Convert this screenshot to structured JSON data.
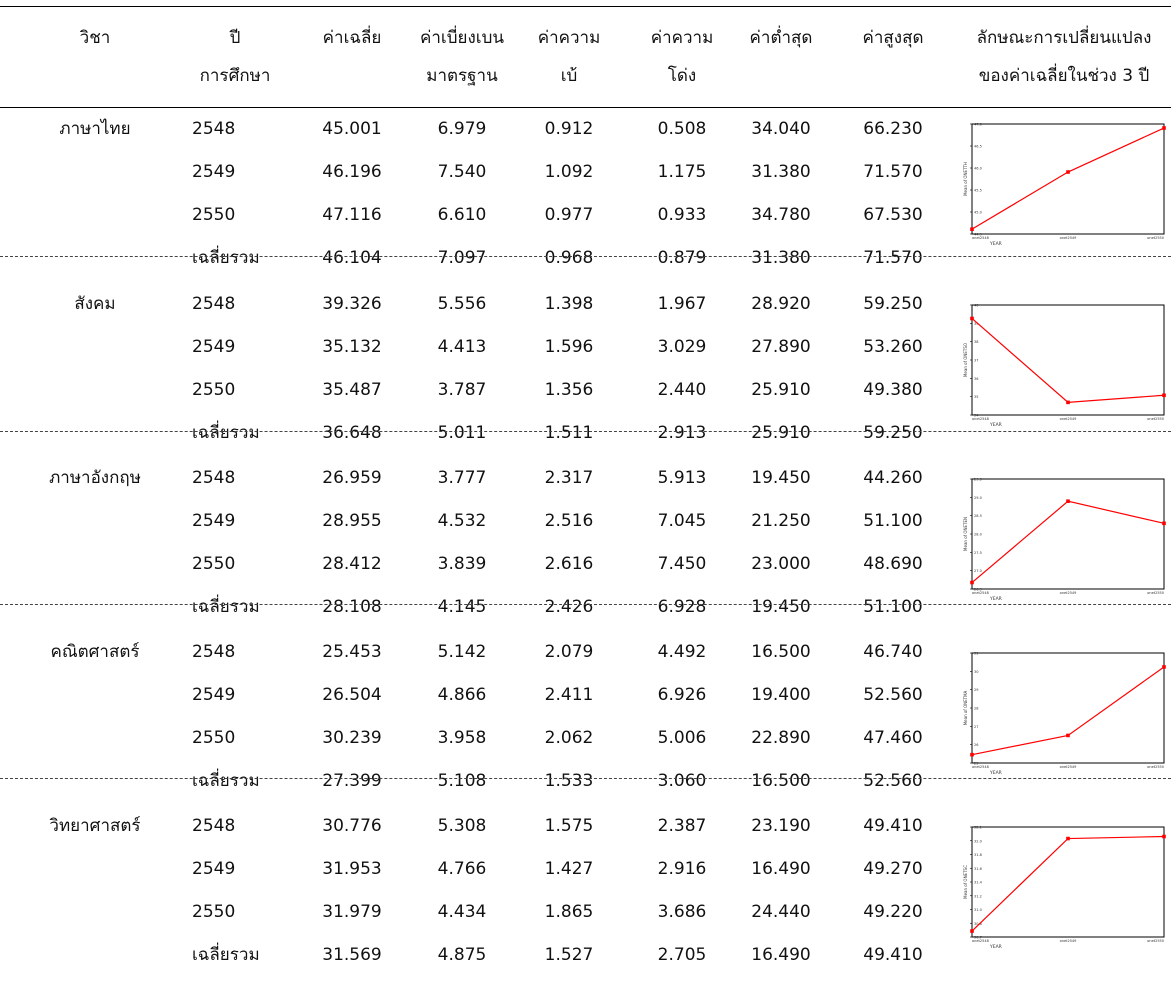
{
  "header": {
    "subject": "วิชา",
    "year": [
      "ปี",
      "การศึกษา"
    ],
    "mean": "ค่าเฉลี่ย",
    "sd": [
      "ค่าเบี่ยงเบน",
      "มาตรฐาน"
    ],
    "skew": [
      "ค่าความ",
      "เบ้"
    ],
    "kurt": [
      "ค่าความ",
      "โด่ง"
    ],
    "min": "ค่าต่ำสุด",
    "max": "ค่าสูงสุด",
    "trend": [
      "ลักษณะการเปลี่ยนแปลง",
      "ของค่าเฉลี่ยในช่วง 3 ปี"
    ]
  },
  "groups": [
    {
      "subject": "ภาษาไทย",
      "rows": [
        [
          "2548",
          "45.001",
          "6.979",
          "0.912",
          "0.508",
          "34.040",
          "66.230"
        ],
        [
          "2549",
          "46.196",
          "7.540",
          "1.092",
          "1.175",
          "31.380",
          "71.570"
        ],
        [
          "2550",
          "47.116",
          "6.610",
          "0.977",
          "0.933",
          "34.780",
          "67.530"
        ],
        [
          "เฉลี่ยรวม",
          "46.104",
          "7.097",
          "0.968",
          "0.879",
          "31.380",
          "71.570"
        ]
      ]
    },
    {
      "subject": "สังคม",
      "rows": [
        [
          "2548",
          "39.326",
          "5.556",
          "1.398",
          "1.967",
          "28.920",
          "59.250"
        ],
        [
          "2549",
          "35.132",
          "4.413",
          "1.596",
          "3.029",
          "27.890",
          "53.260"
        ],
        [
          "2550",
          "35.487",
          "3.787",
          "1.356",
          "2.440",
          "25.910",
          "49.380"
        ],
        [
          "เฉลี่ยรวม",
          "36.648",
          "5.011",
          "1.511",
          "2.913",
          "25.910",
          "59.250"
        ]
      ]
    },
    {
      "subject": "ภาษาอังกฤษ",
      "rows": [
        [
          "2548",
          "26.959",
          "3.777",
          "2.317",
          "5.913",
          "19.450",
          "44.260"
        ],
        [
          "2549",
          "28.955",
          "4.532",
          "2.516",
          "7.045",
          "21.250",
          "51.100"
        ],
        [
          "2550",
          "28.412",
          "3.839",
          "2.616",
          "7.450",
          "23.000",
          "48.690"
        ],
        [
          "เฉลี่ยรวม",
          "28.108",
          "4.145",
          "2.426",
          "6.928",
          "19.450",
          "51.100"
        ]
      ]
    },
    {
      "subject": "คณิตศาสตร์",
      "rows": [
        [
          "2548",
          "25.453",
          "5.142",
          "2.079",
          "4.492",
          "16.500",
          "46.740"
        ],
        [
          "2549",
          "26.504",
          "4.866",
          "2.411",
          "6.926",
          "19.400",
          "52.560"
        ],
        [
          "2550",
          "30.239",
          "3.958",
          "2.062",
          "5.006",
          "22.890",
          "47.460"
        ],
        [
          "เฉลี่ยรวม",
          "27.399",
          "5.108",
          "1.533",
          "3.060",
          "16.500",
          "52.560"
        ]
      ]
    },
    {
      "subject": "วิทยาศาสตร์",
      "rows": [
        [
          "2548",
          "30.776",
          "5.308",
          "1.575",
          "2.387",
          "23.190",
          "49.410"
        ],
        [
          "2549",
          "31.953",
          "4.766",
          "1.427",
          "2.916",
          "16.490",
          "49.270"
        ],
        [
          "2550",
          "31.979",
          "4.434",
          "1.865",
          "3.686",
          "24.440",
          "49.220"
        ],
        [
          "เฉลี่ยรวม",
          "31.569",
          "4.875",
          "1.527",
          "2.705",
          "16.490",
          "49.410"
        ]
      ]
    }
  ],
  "chart_data": [
    {
      "type": "line",
      "x": [
        "onet2548",
        "onet2549",
        "onet2550"
      ],
      "values": [
        45.001,
        46.196,
        47.116
      ],
      "ylim": [
        44.9,
        47.2
      ],
      "yticks": [
        "44.9",
        "45.0",
        "45.5",
        "46.0",
        "46.5",
        "47.0"
      ],
      "xlabel": "YEAR",
      "ylabel": "Mean of ONETTH",
      "color": "#ff0000"
    },
    {
      "type": "line",
      "x": [
        "onet2548",
        "onet2549",
        "onet2550"
      ],
      "values": [
        39.326,
        35.132,
        35.487
      ],
      "ylim": [
        34.5,
        40
      ],
      "yticks": [
        "34",
        "35",
        "36",
        "37",
        "38",
        "39",
        "40"
      ],
      "xlabel": "YEAR",
      "ylabel": "Mean of ONETSO",
      "color": "#ff0000"
    },
    {
      "type": "line",
      "x": [
        "onet2548",
        "onet2549",
        "onet2550"
      ],
      "values": [
        26.959,
        28.955,
        28.412
      ],
      "ylim": [
        26.8,
        29.5
      ],
      "yticks": [
        "26.9",
        "27.0",
        "27.5",
        "28.0",
        "28.5",
        "29.0",
        "29.5"
      ],
      "xlabel": "YEAR",
      "ylabel": "Mean of ONETEN",
      "color": "#ff0000"
    },
    {
      "type": "line",
      "x": [
        "onet2548",
        "onet2549",
        "onet2550"
      ],
      "values": [
        25.453,
        26.504,
        30.239
      ],
      "ylim": [
        25,
        31
      ],
      "yticks": [
        "25",
        "26",
        "27",
        "28",
        "29",
        "30",
        "31"
      ],
      "xlabel": "YEAR",
      "ylabel": "Mean of ONETMA",
      "color": "#ff0000"
    },
    {
      "type": "line",
      "x": [
        "onet2548",
        "onet2549",
        "onet2550"
      ],
      "values": [
        30.776,
        31.953,
        31.979
      ],
      "ylim": [
        30.7,
        32.1
      ],
      "yticks": [
        "30.7",
        "30.8",
        "31.0",
        "31.2",
        "31.4",
        "31.6",
        "31.8",
        "32.0",
        "32.1"
      ],
      "xlabel": "YEAR",
      "ylabel": "Mean of ONETSC",
      "color": "#ff0000"
    }
  ]
}
